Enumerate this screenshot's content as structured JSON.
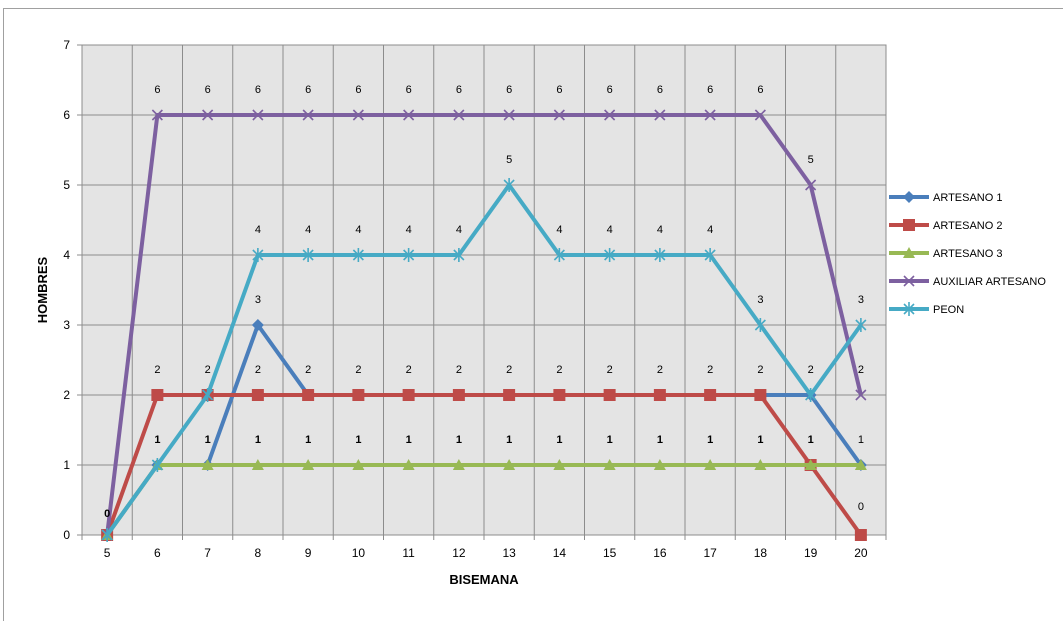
{
  "chart_data": {
    "type": "line",
    "xlabel": "BISEMANA",
    "ylabel": "HOMBRES",
    "x": [
      5,
      6,
      7,
      8,
      9,
      10,
      11,
      12,
      13,
      14,
      15,
      16,
      17,
      18,
      19,
      20
    ],
    "ylim": [
      0,
      7
    ],
    "yticks": [
      0,
      1,
      2,
      3,
      4,
      5,
      6,
      7
    ],
    "grid": true,
    "legend_position": "right",
    "series": [
      {
        "name": "ARTESANO 1",
        "color": "#4A7EBB",
        "marker": "diamond",
        "values": [
          0,
          1,
          1,
          3,
          2,
          2,
          2,
          2,
          2,
          2,
          2,
          2,
          2,
          2,
          2,
          1
        ]
      },
      {
        "name": "ARTESANO 2",
        "color": "#BE4B48",
        "marker": "square",
        "values": [
          0,
          2,
          2,
          2,
          2,
          2,
          2,
          2,
          2,
          2,
          2,
          2,
          2,
          2,
          1,
          0
        ]
      },
      {
        "name": "ARTESANO 3",
        "color": "#98B954",
        "marker": "triangle",
        "values": [
          0,
          1,
          1,
          1,
          1,
          1,
          1,
          1,
          1,
          1,
          1,
          1,
          1,
          1,
          1,
          1
        ]
      },
      {
        "name": "AUXILIAR ARTESANO",
        "color": "#7D60A0",
        "marker": "x",
        "values": [
          0,
          6,
          6,
          6,
          6,
          6,
          6,
          6,
          6,
          6,
          6,
          6,
          6,
          6,
          5,
          2
        ]
      },
      {
        "name": "PEON",
        "color": "#46AAC5",
        "marker": "asterisk",
        "values": [
          0,
          1,
          2,
          4,
          4,
          4,
          4,
          4,
          5,
          4,
          4,
          4,
          4,
          3,
          2,
          3
        ]
      }
    ],
    "data_labels": [
      {
        "x": 5,
        "text": "0"
      },
      {
        "x": 6,
        "text": "1"
      },
      {
        "x": 7,
        "text": "1"
      },
      {
        "x": 8,
        "text": "1"
      },
      {
        "x": 9,
        "text": "1"
      },
      {
        "x": 10,
        "text": "1"
      },
      {
        "x": 11,
        "text": "1"
      },
      {
        "x": 12,
        "text": "1"
      },
      {
        "x": 13,
        "text": "1"
      },
      {
        "x": 14,
        "text": "1"
      },
      {
        "x": 15,
        "text": "1"
      },
      {
        "x": 16,
        "text": "1"
      },
      {
        "x": 17,
        "text": "1"
      },
      {
        "x": 18,
        "text": "1"
      },
      {
        "x": 19,
        "text": "1"
      },
      {
        "x": 20,
        "text": "1"
      },
      {
        "x": 6,
        "text": "2"
      },
      {
        "x": 7,
        "text": "2"
      },
      {
        "x": 8,
        "text": "2"
      },
      {
        "x": 9,
        "text": "2"
      },
      {
        "x": 10,
        "text": "2"
      },
      {
        "x": 11,
        "text": "2"
      },
      {
        "x": 12,
        "text": "2"
      },
      {
        "x": 13,
        "text": "2"
      },
      {
        "x": 14,
        "text": "2"
      },
      {
        "x": 15,
        "text": "2"
      },
      {
        "x": 16,
        "text": "2"
      },
      {
        "x": 17,
        "text": "2"
      },
      {
        "x": 18,
        "text": "2"
      },
      {
        "x": 19,
        "text": "2"
      },
      {
        "x": 20,
        "text": "2"
      },
      {
        "x": 8,
        "text": "3"
      },
      {
        "x": 18,
        "text": "3"
      },
      {
        "x": 20,
        "text": "3"
      },
      {
        "x": 8,
        "text": "4"
      },
      {
        "x": 9,
        "text": "4"
      },
      {
        "x": 10,
        "text": "4"
      },
      {
        "x": 11,
        "text": "4"
      },
      {
        "x": 12,
        "text": "4"
      },
      {
        "x": 14,
        "text": "4"
      },
      {
        "x": 15,
        "text": "4"
      },
      {
        "x": 16,
        "text": "4"
      },
      {
        "x": 17,
        "text": "4"
      },
      {
        "x": 13,
        "text": "5"
      },
      {
        "x": 19,
        "text": "5"
      },
      {
        "x": 6,
        "text": "6"
      },
      {
        "x": 7,
        "text": "6"
      },
      {
        "x": 8,
        "text": "6"
      },
      {
        "x": 9,
        "text": "6"
      },
      {
        "x": 10,
        "text": "6"
      },
      {
        "x": 11,
        "text": "6"
      },
      {
        "x": 12,
        "text": "6"
      },
      {
        "x": 13,
        "text": "6"
      },
      {
        "x": 14,
        "text": "6"
      },
      {
        "x": 15,
        "text": "6"
      },
      {
        "x": 16,
        "text": "6"
      },
      {
        "x": 17,
        "text": "6"
      },
      {
        "x": 18,
        "text": "6"
      },
      {
        "x": 20,
        "text": "0"
      }
    ]
  }
}
